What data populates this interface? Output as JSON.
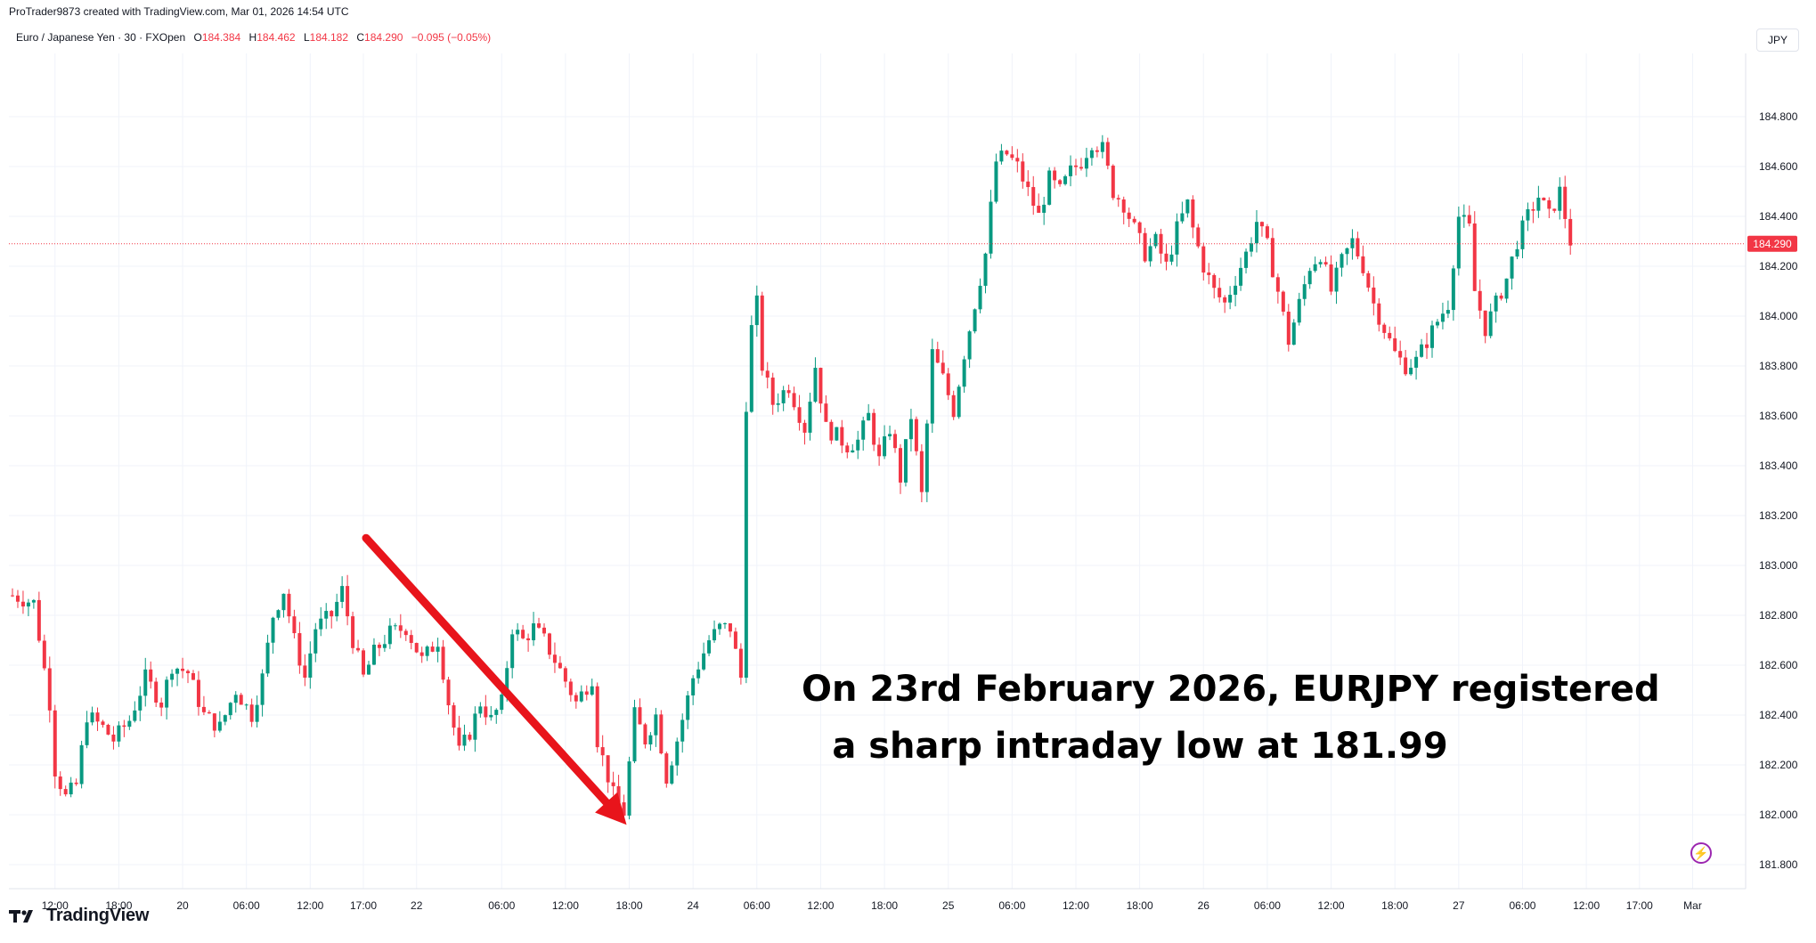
{
  "header": {
    "created_line": "ProTrader9873 created with TradingView.com, Mar 01, 2026 14:54 UTC"
  },
  "legend": {
    "symbol": "Euro / Japanese Yen · 30 · FXOpen",
    "o_label": "O",
    "o_value": "184.384",
    "h_label": "H",
    "h_value": "184.462",
    "l_label": "L",
    "l_value": "184.182",
    "c_label": "C",
    "c_value": "184.290",
    "change": "−0.095 (−0.05%)"
  },
  "currency_button": "JPY",
  "annotation": {
    "line1": "On 23rd February 2026, EURJPY registered",
    "line2": "a sharp intraday low at 181.99"
  },
  "brand": {
    "name": "TradingView"
  },
  "colors": {
    "up": "#089981",
    "down": "#f23645",
    "arrow": "#e8141b",
    "grid": "#f0f3fa",
    "price_label": "#f23645",
    "text": "#131722",
    "bolt": "#9c27b0"
  },
  "icons": {
    "bolt": "lightning-bolt-icon",
    "logo": "tradingview-logo-icon"
  },
  "chart_data": {
    "type": "candlestick",
    "symbol": "EURJPY",
    "interval": "30",
    "y_axis": {
      "ticks": [
        "181.800",
        "182.000",
        "182.200",
        "182.400",
        "182.600",
        "182.800",
        "183.000",
        "183.200",
        "183.400",
        "183.600",
        "183.800",
        "184.000",
        "184.200",
        "184.400",
        "184.600",
        "184.800"
      ],
      "range": [
        181.75,
        184.93
      ]
    },
    "x_axis": {
      "ticks": [
        {
          "label": "12:00",
          "idx": 8
        },
        {
          "label": "18:00",
          "idx": 20
        },
        {
          "label": "20",
          "idx": 32
        },
        {
          "label": "06:00",
          "idx": 44
        },
        {
          "label": "12:00",
          "idx": 56
        },
        {
          "label": "17:00",
          "idx": 66
        },
        {
          "label": "22",
          "idx": 76
        },
        {
          "label": "06:00",
          "idx": 92
        },
        {
          "label": "12:00",
          "idx": 104
        },
        {
          "label": "18:00",
          "idx": 116
        },
        {
          "label": "24",
          "idx": 128
        },
        {
          "label": "06:00",
          "idx": 140
        },
        {
          "label": "12:00",
          "idx": 152
        },
        {
          "label": "18:00",
          "idx": 164
        },
        {
          "label": "25",
          "idx": 176
        },
        {
          "label": "06:00",
          "idx": 188
        },
        {
          "label": "12:00",
          "idx": 200
        },
        {
          "label": "18:00",
          "idx": 212
        },
        {
          "label": "26",
          "idx": 224
        },
        {
          "label": "06:00",
          "idx": 236
        },
        {
          "label": "12:00",
          "idx": 248
        },
        {
          "label": "18:00",
          "idx": 260
        },
        {
          "label": "27",
          "idx": 272
        },
        {
          "label": "06:00",
          "idx": 284
        },
        {
          "label": "12:00",
          "idx": 296
        },
        {
          "label": "17:00",
          "idx": 306
        },
        {
          "label": "Mar",
          "idx": 316
        }
      ]
    },
    "last_price": 184.29,
    "last_price_label": "184.290",
    "anchors": [
      [
        0,
        182.88
      ],
      [
        4,
        182.85
      ],
      [
        7,
        182.45
      ],
      [
        8,
        182.18
      ],
      [
        10,
        182.07
      ],
      [
        12,
        182.12
      ],
      [
        14,
        182.4
      ],
      [
        17,
        182.35
      ],
      [
        19,
        182.3
      ],
      [
        22,
        182.38
      ],
      [
        25,
        182.55
      ],
      [
        28,
        182.45
      ],
      [
        30,
        182.6
      ],
      [
        33,
        182.57
      ],
      [
        36,
        182.4
      ],
      [
        39,
        182.35
      ],
      [
        42,
        182.5
      ],
      [
        45,
        182.4
      ],
      [
        47,
        182.55
      ],
      [
        49,
        182.8
      ],
      [
        51,
        182.9
      ],
      [
        53,
        182.7
      ],
      [
        55,
        182.55
      ],
      [
        57,
        182.75
      ],
      [
        60,
        182.8
      ],
      [
        62,
        182.9
      ],
      [
        64,
        182.7
      ],
      [
        66,
        182.55
      ],
      [
        68,
        182.65
      ],
      [
        71,
        182.73
      ],
      [
        74,
        182.75
      ],
      [
        77,
        182.62
      ],
      [
        80,
        182.7
      ],
      [
        82,
        182.45
      ],
      [
        84,
        182.25
      ],
      [
        86,
        182.33
      ],
      [
        88,
        182.45
      ],
      [
        90,
        182.38
      ],
      [
        92,
        182.45
      ],
      [
        94,
        182.75
      ],
      [
        96,
        182.7
      ],
      [
        98,
        182.75
      ],
      [
        100,
        182.7
      ],
      [
        103,
        182.58
      ],
      [
        106,
        182.45
      ],
      [
        109,
        182.55
      ],
      [
        110,
        182.3
      ],
      [
        113,
        182.08
      ],
      [
        115,
        182.01
      ],
      [
        117,
        182.4
      ],
      [
        119,
        182.3
      ],
      [
        121,
        182.4
      ],
      [
        123,
        182.15
      ],
      [
        125,
        182.3
      ],
      [
        128,
        182.55
      ],
      [
        131,
        182.7
      ],
      [
        133,
        182.75
      ],
      [
        135,
        182.75
      ],
      [
        137,
        182.55
      ],
      [
        138,
        183.65
      ],
      [
        139,
        183.95
      ],
      [
        140,
        184.05
      ],
      [
        141,
        183.8
      ],
      [
        143,
        183.65
      ],
      [
        146,
        183.72
      ],
      [
        149,
        183.55
      ],
      [
        151,
        183.8
      ],
      [
        153,
        183.55
      ],
      [
        155,
        183.52
      ],
      [
        157,
        183.48
      ],
      [
        159,
        183.5
      ],
      [
        161,
        183.6
      ],
      [
        163,
        183.42
      ],
      [
        165,
        183.55
      ],
      [
        167,
        183.35
      ],
      [
        169,
        183.6
      ],
      [
        171,
        183.28
      ],
      [
        173,
        183.85
      ],
      [
        175,
        183.75
      ],
      [
        177,
        183.62
      ],
      [
        179,
        183.85
      ],
      [
        181,
        184.05
      ],
      [
        183,
        184.25
      ],
      [
        185,
        184.62
      ],
      [
        187,
        184.65
      ],
      [
        189,
        184.6
      ],
      [
        191,
        184.5
      ],
      [
        193,
        184.4
      ],
      [
        195,
        184.55
      ],
      [
        197,
        184.5
      ],
      [
        199,
        184.58
      ],
      [
        201,
        184.62
      ],
      [
        203,
        184.7
      ],
      [
        205,
        184.67
      ],
      [
        207,
        184.5
      ],
      [
        209,
        184.45
      ],
      [
        211,
        184.35
      ],
      [
        213,
        184.25
      ],
      [
        215,
        184.3
      ],
      [
        217,
        184.2
      ],
      [
        219,
        184.35
      ],
      [
        221,
        184.45
      ],
      [
        222,
        184.35
      ],
      [
        224,
        184.2
      ],
      [
        226,
        184.1
      ],
      [
        228,
        184.05
      ],
      [
        230,
        184.15
      ],
      [
        232,
        184.25
      ],
      [
        234,
        184.38
      ],
      [
        236,
        184.28
      ],
      [
        238,
        184.1
      ],
      [
        240,
        183.9
      ],
      [
        242,
        184.05
      ],
      [
        244,
        184.2
      ],
      [
        246,
        184.25
      ],
      [
        248,
        184.1
      ],
      [
        250,
        184.22
      ],
      [
        252,
        184.3
      ],
      [
        254,
        184.2
      ],
      [
        256,
        184.05
      ],
      [
        258,
        183.95
      ],
      [
        260,
        183.85
      ],
      [
        262,
        183.8
      ],
      [
        264,
        183.82
      ],
      [
        266,
        183.9
      ],
      [
        268,
        183.98
      ],
      [
        270,
        184.05
      ],
      [
        272,
        184.4
      ],
      [
        274,
        184.35
      ],
      [
        275,
        184.1
      ],
      [
        277,
        183.95
      ],
      [
        279,
        184.05
      ],
      [
        281,
        184.15
      ],
      [
        283,
        184.3
      ],
      [
        285,
        184.4
      ],
      [
        287,
        184.48
      ],
      [
        289,
        184.4
      ],
      [
        291,
        184.5
      ],
      [
        293,
        184.3
      ]
    ],
    "annotation_arrow": {
      "from": {
        "idx": 66.5,
        "price": 183.11
      },
      "to": {
        "idx": 115.5,
        "price": 181.96
      }
    }
  }
}
